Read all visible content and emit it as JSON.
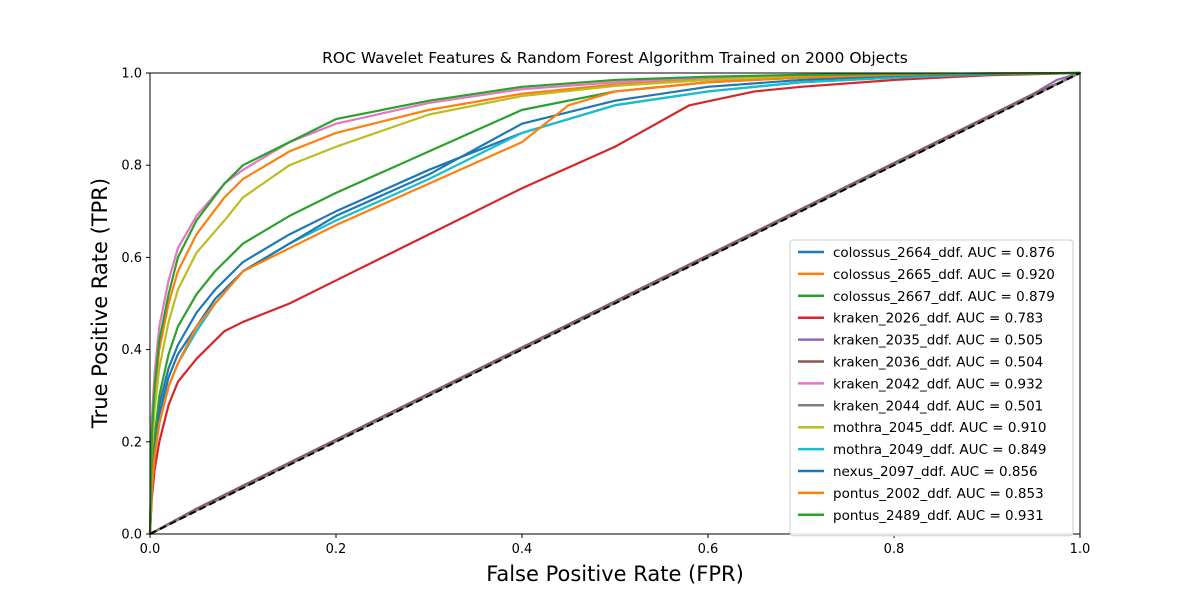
{
  "chart_data": {
    "type": "line",
    "title": "ROC Wavelet Features & Random Forest Algorithm Trained on 2000 Objects",
    "xlabel": "False Positive Rate (FPR)",
    "ylabel": "True Positive Rate (TPR)",
    "xlim": [
      0,
      1
    ],
    "ylim": [
      0,
      1
    ],
    "x_ticks": [
      "0.0",
      "0.2",
      "0.4",
      "0.6",
      "0.8",
      "1.0"
    ],
    "y_ticks": [
      "0.0",
      "0.2",
      "0.4",
      "0.6",
      "0.8",
      "1.0"
    ],
    "grid": false,
    "legend_position": "lower-right",
    "diagonal_reference": {
      "style": "dashed",
      "color": "#000000",
      "points": [
        [
          0,
          0
        ],
        [
          1,
          1
        ]
      ]
    },
    "series": [
      {
        "name": "colossus_2664_ddf. AUC = 0.876",
        "color": "#1f77b4",
        "points": [
          [
            0,
            0
          ],
          [
            0.002,
            0.12
          ],
          [
            0.005,
            0.2
          ],
          [
            0.01,
            0.28
          ],
          [
            0.02,
            0.36
          ],
          [
            0.03,
            0.41
          ],
          [
            0.05,
            0.48
          ],
          [
            0.07,
            0.53
          ],
          [
            0.1,
            0.59
          ],
          [
            0.15,
            0.65
          ],
          [
            0.2,
            0.7
          ],
          [
            0.3,
            0.79
          ],
          [
            0.4,
            0.87
          ],
          [
            0.5,
            0.93
          ],
          [
            0.6,
            0.96
          ],
          [
            0.7,
            0.98
          ],
          [
            0.8,
            0.99
          ],
          [
            0.9,
            0.997
          ],
          [
            1,
            1
          ]
        ]
      },
      {
        "name": "colossus_2665_ddf. AUC = 0.920",
        "color": "#ff7f0e",
        "points": [
          [
            0,
            0
          ],
          [
            0.002,
            0.2
          ],
          [
            0.005,
            0.3
          ],
          [
            0.01,
            0.4
          ],
          [
            0.02,
            0.5
          ],
          [
            0.03,
            0.57
          ],
          [
            0.05,
            0.65
          ],
          [
            0.08,
            0.73
          ],
          [
            0.1,
            0.77
          ],
          [
            0.15,
            0.83
          ],
          [
            0.2,
            0.87
          ],
          [
            0.3,
            0.92
          ],
          [
            0.4,
            0.955
          ],
          [
            0.5,
            0.975
          ],
          [
            0.6,
            0.987
          ],
          [
            0.7,
            0.994
          ],
          [
            0.8,
            0.998
          ],
          [
            0.9,
            0.999
          ],
          [
            1,
            1
          ]
        ]
      },
      {
        "name": "colossus_2667_ddf. AUC = 0.879",
        "color": "#2ca02c",
        "points": [
          [
            0,
            0
          ],
          [
            0.002,
            0.13
          ],
          [
            0.005,
            0.21
          ],
          [
            0.01,
            0.3
          ],
          [
            0.02,
            0.39
          ],
          [
            0.03,
            0.45
          ],
          [
            0.05,
            0.52
          ],
          [
            0.07,
            0.57
          ],
          [
            0.1,
            0.63
          ],
          [
            0.15,
            0.69
          ],
          [
            0.2,
            0.74
          ],
          [
            0.3,
            0.83
          ],
          [
            0.4,
            0.92
          ],
          [
            0.5,
            0.96
          ],
          [
            0.6,
            0.98
          ],
          [
            0.7,
            0.99
          ],
          [
            0.8,
            0.995
          ],
          [
            0.9,
            0.998
          ],
          [
            1,
            1
          ]
        ]
      },
      {
        "name": "kraken_2026_ddf. AUC = 0.783",
        "color": "#d62728",
        "points": [
          [
            0,
            0
          ],
          [
            0.002,
            0.08
          ],
          [
            0.005,
            0.14
          ],
          [
            0.01,
            0.2
          ],
          [
            0.02,
            0.28
          ],
          [
            0.03,
            0.33
          ],
          [
            0.05,
            0.38
          ],
          [
            0.08,
            0.44
          ],
          [
            0.1,
            0.46
          ],
          [
            0.15,
            0.5
          ],
          [
            0.2,
            0.55
          ],
          [
            0.3,
            0.65
          ],
          [
            0.4,
            0.75
          ],
          [
            0.5,
            0.84
          ],
          [
            0.58,
            0.93
          ],
          [
            0.65,
            0.96
          ],
          [
            0.7,
            0.97
          ],
          [
            0.8,
            0.985
          ],
          [
            0.9,
            0.995
          ],
          [
            1,
            1
          ]
        ]
      },
      {
        "name": "kraken_2035_ddf. AUC = 0.505",
        "color": "#9467bd",
        "points": [
          [
            0,
            0
          ],
          [
            0.05,
            0.055
          ],
          [
            0.25,
            0.255
          ],
          [
            0.5,
            0.505
          ],
          [
            0.75,
            0.755
          ],
          [
            0.95,
            0.955
          ],
          [
            0.975,
            0.985
          ],
          [
            1,
            1
          ]
        ]
      },
      {
        "name": "kraken_2036_ddf. AUC = 0.504",
        "color": "#8c564b",
        "points": [
          [
            0,
            0
          ],
          [
            0.05,
            0.054
          ],
          [
            0.25,
            0.254
          ],
          [
            0.5,
            0.504
          ],
          [
            0.75,
            0.754
          ],
          [
            0.95,
            0.954
          ],
          [
            1,
            1
          ]
        ]
      },
      {
        "name": "kraken_2042_ddf. AUC = 0.932",
        "color": "#e377c2",
        "points": [
          [
            0,
            0
          ],
          [
            0.002,
            0.25
          ],
          [
            0.005,
            0.35
          ],
          [
            0.01,
            0.45
          ],
          [
            0.02,
            0.55
          ],
          [
            0.03,
            0.62
          ],
          [
            0.05,
            0.69
          ],
          [
            0.08,
            0.76
          ],
          [
            0.1,
            0.79
          ],
          [
            0.15,
            0.85
          ],
          [
            0.2,
            0.89
          ],
          [
            0.3,
            0.935
          ],
          [
            0.4,
            0.965
          ],
          [
            0.5,
            0.98
          ],
          [
            0.6,
            0.99
          ],
          [
            0.7,
            0.995
          ],
          [
            0.8,
            0.998
          ],
          [
            0.9,
            0.999
          ],
          [
            1,
            1
          ]
        ]
      },
      {
        "name": "kraken_2044_ddf. AUC = 0.501",
        "color": "#7f7f7f",
        "points": [
          [
            0,
            0
          ],
          [
            0.05,
            0.051
          ],
          [
            0.25,
            0.251
          ],
          [
            0.5,
            0.501
          ],
          [
            0.75,
            0.751
          ],
          [
            0.95,
            0.951
          ],
          [
            1,
            1
          ]
        ]
      },
      {
        "name": "mothra_2045_ddf. AUC = 0.910",
        "color": "#bcbd22",
        "points": [
          [
            0,
            0
          ],
          [
            0.002,
            0.18
          ],
          [
            0.005,
            0.27
          ],
          [
            0.01,
            0.36
          ],
          [
            0.02,
            0.46
          ],
          [
            0.03,
            0.53
          ],
          [
            0.05,
            0.61
          ],
          [
            0.08,
            0.68
          ],
          [
            0.1,
            0.73
          ],
          [
            0.15,
            0.8
          ],
          [
            0.2,
            0.84
          ],
          [
            0.3,
            0.91
          ],
          [
            0.4,
            0.95
          ],
          [
            0.5,
            0.972
          ],
          [
            0.6,
            0.985
          ],
          [
            0.7,
            0.993
          ],
          [
            0.8,
            0.997
          ],
          [
            0.9,
            0.999
          ],
          [
            1,
            1
          ]
        ]
      },
      {
        "name": "mothra_2049_ddf. AUC = 0.849",
        "color": "#17becf",
        "points": [
          [
            0,
            0
          ],
          [
            0.002,
            0.1
          ],
          [
            0.005,
            0.17
          ],
          [
            0.01,
            0.24
          ],
          [
            0.02,
            0.32
          ],
          [
            0.03,
            0.37
          ],
          [
            0.05,
            0.44
          ],
          [
            0.07,
            0.5
          ],
          [
            0.1,
            0.57
          ],
          [
            0.15,
            0.63
          ],
          [
            0.2,
            0.68
          ],
          [
            0.3,
            0.77
          ],
          [
            0.4,
            0.87
          ],
          [
            0.5,
            0.93
          ],
          [
            0.6,
            0.96
          ],
          [
            0.7,
            0.98
          ],
          [
            0.8,
            0.99
          ],
          [
            0.9,
            0.997
          ],
          [
            1,
            1
          ]
        ]
      },
      {
        "name": "nexus_2097_ddf. AUC = 0.856",
        "color": "#1f77b4",
        "points": [
          [
            0,
            0
          ],
          [
            0.002,
            0.11
          ],
          [
            0.005,
            0.18
          ],
          [
            0.01,
            0.26
          ],
          [
            0.02,
            0.34
          ],
          [
            0.03,
            0.39
          ],
          [
            0.05,
            0.45
          ],
          [
            0.07,
            0.51
          ],
          [
            0.1,
            0.57
          ],
          [
            0.15,
            0.63
          ],
          [
            0.2,
            0.69
          ],
          [
            0.3,
            0.78
          ],
          [
            0.4,
            0.89
          ],
          [
            0.5,
            0.94
          ],
          [
            0.6,
            0.97
          ],
          [
            0.7,
            0.985
          ],
          [
            0.8,
            0.994
          ],
          [
            0.9,
            0.998
          ],
          [
            1,
            1
          ]
        ]
      },
      {
        "name": "pontus_2002_ddf. AUC = 0.853",
        "color": "#ff7f0e",
        "points": [
          [
            0,
            0
          ],
          [
            0.002,
            0.1
          ],
          [
            0.005,
            0.17
          ],
          [
            0.01,
            0.24
          ],
          [
            0.02,
            0.32
          ],
          [
            0.03,
            0.37
          ],
          [
            0.05,
            0.45
          ],
          [
            0.07,
            0.5
          ],
          [
            0.1,
            0.57
          ],
          [
            0.15,
            0.62
          ],
          [
            0.2,
            0.67
          ],
          [
            0.3,
            0.76
          ],
          [
            0.4,
            0.85
          ],
          [
            0.45,
            0.93
          ],
          [
            0.5,
            0.96
          ],
          [
            0.6,
            0.98
          ],
          [
            0.7,
            0.99
          ],
          [
            0.8,
            0.996
          ],
          [
            0.9,
            0.999
          ],
          [
            1,
            1
          ]
        ]
      },
      {
        "name": "pontus_2489_ddf. AUC = 0.931",
        "color": "#2ca02c",
        "points": [
          [
            0,
            0
          ],
          [
            0.002,
            0.22
          ],
          [
            0.005,
            0.32
          ],
          [
            0.01,
            0.42
          ],
          [
            0.02,
            0.52
          ],
          [
            0.03,
            0.6
          ],
          [
            0.05,
            0.68
          ],
          [
            0.08,
            0.76
          ],
          [
            0.1,
            0.8
          ],
          [
            0.15,
            0.85
          ],
          [
            0.2,
            0.9
          ],
          [
            0.3,
            0.94
          ],
          [
            0.4,
            0.97
          ],
          [
            0.5,
            0.985
          ],
          [
            0.6,
            0.992
          ],
          [
            0.7,
            0.996
          ],
          [
            0.8,
            0.998
          ],
          [
            0.9,
            0.999
          ],
          [
            1,
            1
          ]
        ]
      }
    ]
  }
}
